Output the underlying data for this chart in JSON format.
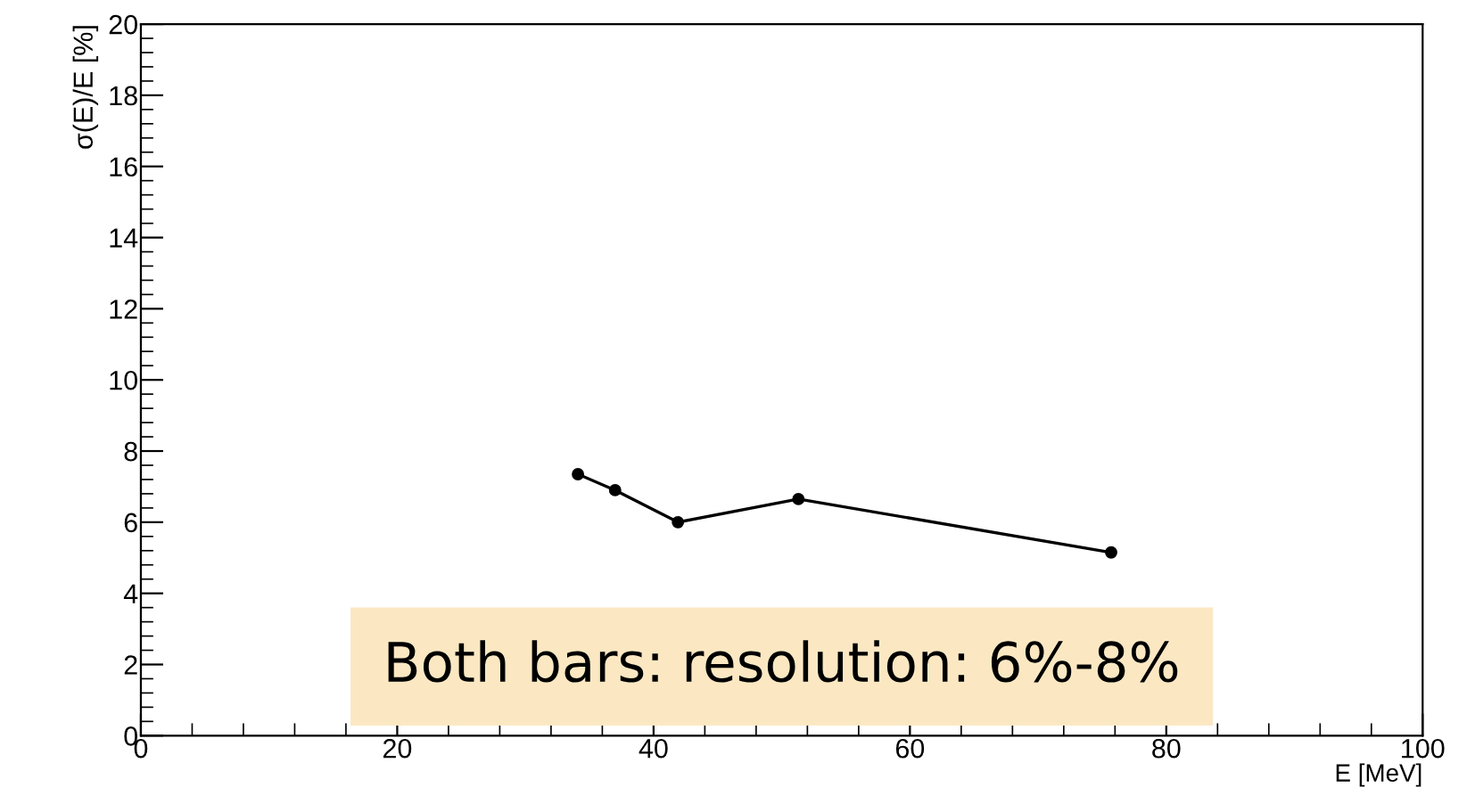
{
  "chart_data": {
    "type": "line",
    "xlabel": "E [MeV]",
    "ylabel": "σ(E)/E [%]",
    "x": [
      34.1,
      37.0,
      41.9,
      51.3,
      75.7
    ],
    "series": [
      {
        "color": "#000000",
        "values": [
          7.35,
          6.9,
          6.0,
          6.65,
          5.15
        ]
      }
    ],
    "xlim": [
      0,
      100
    ],
    "xticks": [
      0,
      20,
      40,
      60,
      80,
      100
    ],
    "ylim": [
      0,
      20
    ],
    "yticks": [
      0,
      2,
      4,
      6,
      8,
      10,
      12,
      14,
      16,
      18,
      20
    ],
    "marker": "circle",
    "line_style": "solid",
    "grid": false,
    "legend": false,
    "annotations": [
      "Both bars: resolution: 6%-8%"
    ]
  }
}
